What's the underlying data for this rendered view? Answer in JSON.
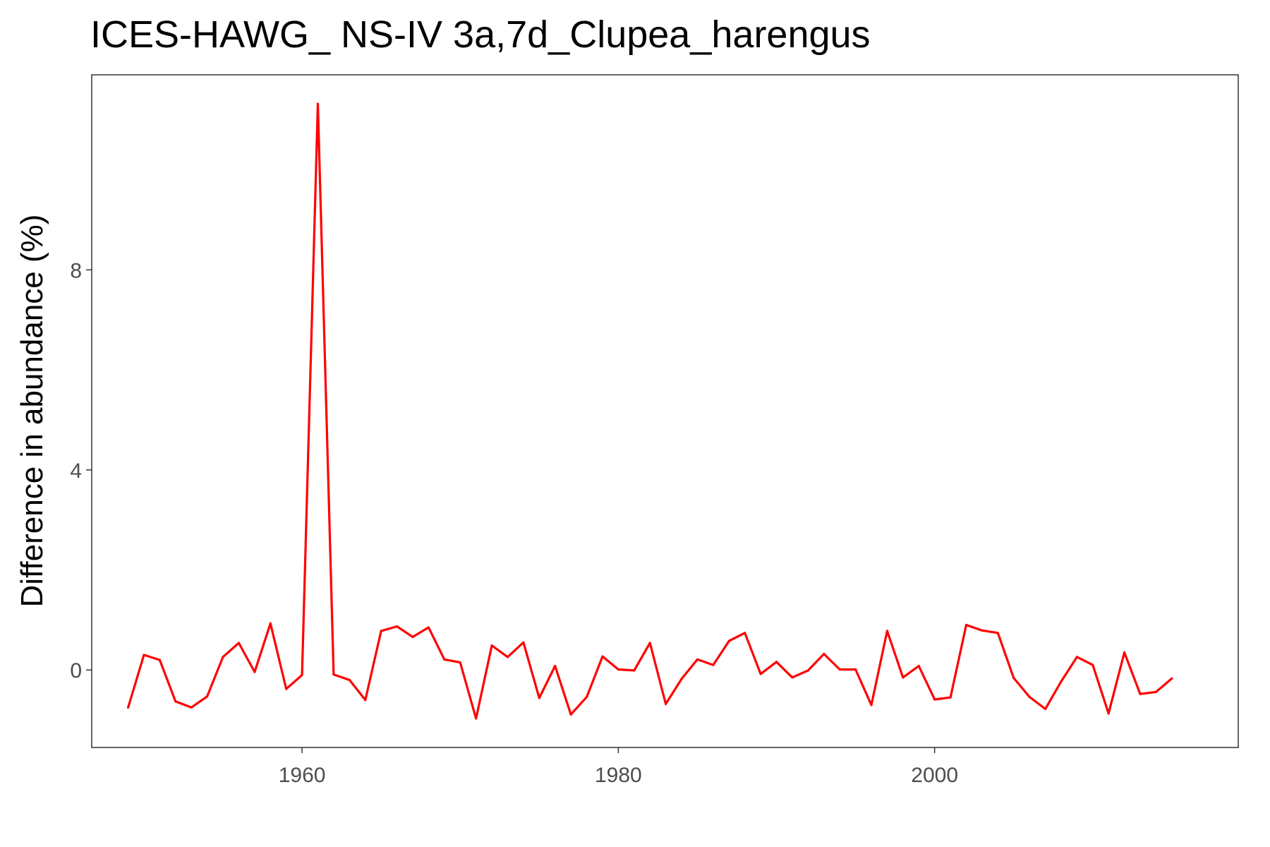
{
  "chart_data": {
    "type": "line",
    "title": "ICES-HAWG_ NS-IV 3a,7d_Clupea_harengus",
    "xlabel": "",
    "ylabel": "Difference in abundance (%)",
    "x_ticks": [
      1960,
      1980,
      2000
    ],
    "y_ticks": [
      0,
      4,
      8
    ],
    "xlim": [
      1946.7,
      2019.2
    ],
    "ylim": [
      -1.55,
      11.9
    ],
    "grid": false,
    "colors": {
      "line": "#ff0000",
      "axis_text": "#4d4d4d",
      "panel_border": "#333333"
    },
    "series": [
      {
        "x": [
          1949,
          1950,
          1951,
          1952,
          1953,
          1954,
          1955,
          1956,
          1957,
          1958,
          1959,
          1960,
          1961,
          1962,
          1963,
          1964,
          1965,
          1966,
          1967,
          1968,
          1969,
          1970,
          1971,
          1972,
          1973,
          1974,
          1975,
          1976,
          1977,
          1978,
          1979,
          1980,
          1981,
          1982,
          1983,
          1984,
          1985,
          1986,
          1987,
          1988,
          1989,
          1990,
          1991,
          1992,
          1993,
          1994,
          1995,
          1996,
          1997,
          1998,
          1999,
          2000,
          2001,
          2002,
          2003,
          2004,
          2005,
          2006,
          2007,
          2008,
          2009,
          2010,
          2011,
          2012,
          2013,
          2014,
          2015
        ],
        "y": [
          -0.75,
          0.3,
          0.2,
          -0.63,
          -0.75,
          -0.53,
          0.26,
          0.54,
          -0.04,
          0.93,
          -0.38,
          -0.1,
          11.32,
          -0.09,
          -0.2,
          -0.6,
          0.78,
          0.87,
          0.66,
          0.85,
          0.21,
          0.15,
          -0.97,
          0.49,
          0.26,
          0.55,
          -0.56,
          0.08,
          -0.89,
          -0.54,
          0.27,
          0.01,
          -0.01,
          0.54,
          -0.68,
          -0.18,
          0.21,
          0.1,
          0.58,
          0.74,
          -0.08,
          0.16,
          -0.15,
          -0.01,
          0.32,
          0.01,
          0.01,
          -0.7,
          0.78,
          -0.15,
          0.08,
          -0.59,
          -0.55,
          0.9,
          0.79,
          0.74,
          -0.16,
          -0.54,
          -0.78,
          -0.23,
          0.26,
          0.1,
          -0.87,
          0.35,
          -0.48,
          -0.44,
          -0.17
        ]
      }
    ]
  }
}
